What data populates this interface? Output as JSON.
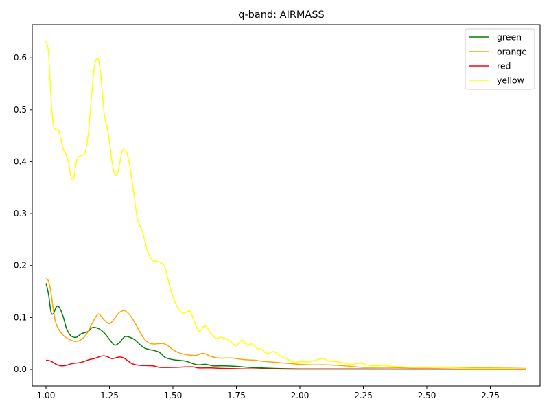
{
  "chart_data": {
    "type": "line",
    "title": "q-band: AIRMASS",
    "xlabel": "",
    "ylabel": "",
    "xlim": [
      0.946,
      2.946
    ],
    "ylim": [
      -0.0317,
      0.6637
    ],
    "x_ticks": [
      1.0,
      1.25,
      1.5,
      1.75,
      2.0,
      2.25,
      2.5,
      2.75
    ],
    "x_tick_labels": [
      "1.00",
      "1.25",
      "1.50",
      "1.75",
      "2.00",
      "2.25",
      "2.50",
      "2.75"
    ],
    "y_ticks": [
      0.0,
      0.1,
      0.2,
      0.3,
      0.4,
      0.5,
      0.6
    ],
    "y_tick_labels": [
      "0.0",
      "0.1",
      "0.2",
      "0.3",
      "0.4",
      "0.5",
      "0.6"
    ],
    "grid": false,
    "legend": "top-right",
    "series": [
      {
        "name": "green",
        "color": "#008000",
        "points": [
          [
            1.0,
            0.166
          ],
          [
            1.01,
            0.145
          ],
          [
            1.02,
            0.11
          ],
          [
            1.03,
            0.108
          ],
          [
            1.04,
            0.12
          ],
          [
            1.05,
            0.121
          ],
          [
            1.06,
            0.112
          ],
          [
            1.07,
            0.098
          ],
          [
            1.08,
            0.08
          ],
          [
            1.09,
            0.07
          ],
          [
            1.1,
            0.064
          ],
          [
            1.12,
            0.062
          ],
          [
            1.14,
            0.069
          ],
          [
            1.16,
            0.072
          ],
          [
            1.17,
            0.075
          ],
          [
            1.18,
            0.08
          ],
          [
            1.19,
            0.081
          ],
          [
            1.21,
            0.078
          ],
          [
            1.23,
            0.07
          ],
          [
            1.25,
            0.058
          ],
          [
            1.27,
            0.047
          ],
          [
            1.29,
            0.052
          ],
          [
            1.31,
            0.063
          ],
          [
            1.33,
            0.062
          ],
          [
            1.35,
            0.057
          ],
          [
            1.37,
            0.048
          ],
          [
            1.39,
            0.041
          ],
          [
            1.41,
            0.038
          ],
          [
            1.43,
            0.036
          ],
          [
            1.45,
            0.032
          ],
          [
            1.47,
            0.023
          ],
          [
            1.5,
            0.019
          ],
          [
            1.55,
            0.016
          ],
          [
            1.58,
            0.011
          ],
          [
            1.6,
            0.009
          ],
          [
            1.63,
            0.01
          ],
          [
            1.66,
            0.007
          ],
          [
            1.7,
            0.007
          ],
          [
            1.75,
            0.006
          ],
          [
            1.8,
            0.004
          ],
          [
            1.85,
            0.003
          ],
          [
            1.9,
            0.002
          ],
          [
            2.0,
            0.001
          ],
          [
            2.2,
            0.001
          ],
          [
            2.5,
            0.0005
          ],
          [
            2.89,
            0.0005
          ]
        ]
      },
      {
        "name": "orange",
        "color": "#ffa500",
        "points": [
          [
            1.0,
            0.175
          ],
          [
            1.01,
            0.17
          ],
          [
            1.02,
            0.147
          ],
          [
            1.03,
            0.112
          ],
          [
            1.04,
            0.088
          ],
          [
            1.06,
            0.07
          ],
          [
            1.08,
            0.061
          ],
          [
            1.1,
            0.056
          ],
          [
            1.12,
            0.054
          ],
          [
            1.14,
            0.058
          ],
          [
            1.16,
            0.068
          ],
          [
            1.18,
            0.087
          ],
          [
            1.2,
            0.104
          ],
          [
            1.21,
            0.106
          ],
          [
            1.23,
            0.095
          ],
          [
            1.25,
            0.088
          ],
          [
            1.27,
            0.098
          ],
          [
            1.29,
            0.11
          ],
          [
            1.31,
            0.113
          ],
          [
            1.33,
            0.105
          ],
          [
            1.35,
            0.09
          ],
          [
            1.37,
            0.072
          ],
          [
            1.39,
            0.057
          ],
          [
            1.41,
            0.05
          ],
          [
            1.43,
            0.049
          ],
          [
            1.46,
            0.05
          ],
          [
            1.48,
            0.046
          ],
          [
            1.5,
            0.038
          ],
          [
            1.53,
            0.031
          ],
          [
            1.56,
            0.028
          ],
          [
            1.59,
            0.027
          ],
          [
            1.62,
            0.031
          ],
          [
            1.65,
            0.025
          ],
          [
            1.68,
            0.022
          ],
          [
            1.73,
            0.022
          ],
          [
            1.78,
            0.019
          ],
          [
            1.82,
            0.018
          ],
          [
            1.85,
            0.016
          ],
          [
            1.9,
            0.014
          ],
          [
            1.95,
            0.012
          ],
          [
            2.0,
            0.01
          ],
          [
            2.05,
            0.009
          ],
          [
            2.1,
            0.009
          ],
          [
            2.15,
            0.008
          ],
          [
            2.2,
            0.006
          ],
          [
            2.25,
            0.004
          ],
          [
            2.35,
            0.004
          ],
          [
            2.45,
            0.003
          ],
          [
            2.55,
            0.003
          ],
          [
            2.65,
            0.003
          ],
          [
            2.75,
            0.003
          ],
          [
            2.89,
            0.002
          ]
        ]
      },
      {
        "name": "red",
        "color": "#ff0000",
        "points": [
          [
            1.0,
            0.018
          ],
          [
            1.02,
            0.016
          ],
          [
            1.04,
            0.01
          ],
          [
            1.06,
            0.007
          ],
          [
            1.08,
            0.008
          ],
          [
            1.1,
            0.011
          ],
          [
            1.14,
            0.014
          ],
          [
            1.17,
            0.019
          ],
          [
            1.19,
            0.021
          ],
          [
            1.22,
            0.026
          ],
          [
            1.24,
            0.025
          ],
          [
            1.26,
            0.021
          ],
          [
            1.29,
            0.024
          ],
          [
            1.31,
            0.021
          ],
          [
            1.34,
            0.011
          ],
          [
            1.37,
            0.008
          ],
          [
            1.42,
            0.007
          ],
          [
            1.45,
            0.004
          ],
          [
            1.5,
            0.004
          ],
          [
            1.55,
            0.005
          ],
          [
            1.58,
            0.005
          ],
          [
            1.6,
            0.003
          ],
          [
            1.65,
            0.003
          ],
          [
            1.7,
            0.002
          ],
          [
            1.8,
            0.001
          ],
          [
            1.9,
            0.001
          ],
          [
            2.0,
            0.0005
          ],
          [
            2.1,
            0.0005
          ],
          [
            2.2,
            0.0005
          ],
          [
            2.4,
            0.0005
          ],
          [
            2.89,
            0.0003
          ]
        ]
      },
      {
        "name": "yellow",
        "color": "#ffff00",
        "points": [
          [
            1.0,
            0.632
          ],
          [
            1.01,
            0.61
          ],
          [
            1.02,
            0.52
          ],
          [
            1.03,
            0.47
          ],
          [
            1.04,
            0.462
          ],
          [
            1.05,
            0.46
          ],
          [
            1.06,
            0.44
          ],
          [
            1.07,
            0.422
          ],
          [
            1.08,
            0.413
          ],
          [
            1.09,
            0.395
          ],
          [
            1.1,
            0.368
          ],
          [
            1.11,
            0.37
          ],
          [
            1.12,
            0.4
          ],
          [
            1.13,
            0.41
          ],
          [
            1.15,
            0.415
          ],
          [
            1.16,
            0.43
          ],
          [
            1.17,
            0.47
          ],
          [
            1.18,
            0.53
          ],
          [
            1.19,
            0.58
          ],
          [
            1.2,
            0.598
          ],
          [
            1.21,
            0.59
          ],
          [
            1.22,
            0.545
          ],
          [
            1.23,
            0.49
          ],
          [
            1.24,
            0.468
          ],
          [
            1.25,
            0.44
          ],
          [
            1.26,
            0.4
          ],
          [
            1.27,
            0.378
          ],
          [
            1.28,
            0.375
          ],
          [
            1.29,
            0.395
          ],
          [
            1.3,
            0.42
          ],
          [
            1.31,
            0.423
          ],
          [
            1.32,
            0.415
          ],
          [
            1.33,
            0.392
          ],
          [
            1.34,
            0.36
          ],
          [
            1.35,
            0.325
          ],
          [
            1.36,
            0.29
          ],
          [
            1.38,
            0.265
          ],
          [
            1.4,
            0.228
          ],
          [
            1.42,
            0.21
          ],
          [
            1.44,
            0.208
          ],
          [
            1.46,
            0.203
          ],
          [
            1.47,
            0.195
          ],
          [
            1.48,
            0.175
          ],
          [
            1.5,
            0.14
          ],
          [
            1.52,
            0.118
          ],
          [
            1.54,
            0.108
          ],
          [
            1.56,
            0.112
          ],
          [
            1.57,
            0.11
          ],
          [
            1.59,
            0.085
          ],
          [
            1.6,
            0.075
          ],
          [
            1.61,
            0.075
          ],
          [
            1.62,
            0.082
          ],
          [
            1.63,
            0.083
          ],
          [
            1.65,
            0.07
          ],
          [
            1.67,
            0.06
          ],
          [
            1.69,
            0.062
          ],
          [
            1.72,
            0.056
          ],
          [
            1.74,
            0.048
          ],
          [
            1.75,
            0.046
          ],
          [
            1.77,
            0.056
          ],
          [
            1.78,
            0.055
          ],
          [
            1.79,
            0.046
          ],
          [
            1.81,
            0.049
          ],
          [
            1.83,
            0.041
          ],
          [
            1.85,
            0.038
          ],
          [
            1.87,
            0.031
          ],
          [
            1.89,
            0.034
          ],
          [
            1.9,
            0.034
          ],
          [
            1.92,
            0.027
          ],
          [
            1.95,
            0.02
          ],
          [
            1.98,
            0.014
          ],
          [
            2.0,
            0.015
          ],
          [
            2.04,
            0.015
          ],
          [
            2.07,
            0.019
          ],
          [
            2.09,
            0.021
          ],
          [
            2.12,
            0.016
          ],
          [
            2.16,
            0.014
          ],
          [
            2.2,
            0.01
          ],
          [
            2.24,
            0.012
          ],
          [
            2.27,
            0.008
          ],
          [
            2.3,
            0.007
          ],
          [
            2.33,
            0.008
          ],
          [
            2.36,
            0.006
          ],
          [
            2.4,
            0.005
          ],
          [
            2.45,
            0.004
          ],
          [
            2.5,
            0.004
          ],
          [
            2.6,
            0.003
          ],
          [
            2.7,
            0.002
          ],
          [
            2.8,
            0.002
          ],
          [
            2.89,
            0.001
          ]
        ]
      }
    ]
  }
}
